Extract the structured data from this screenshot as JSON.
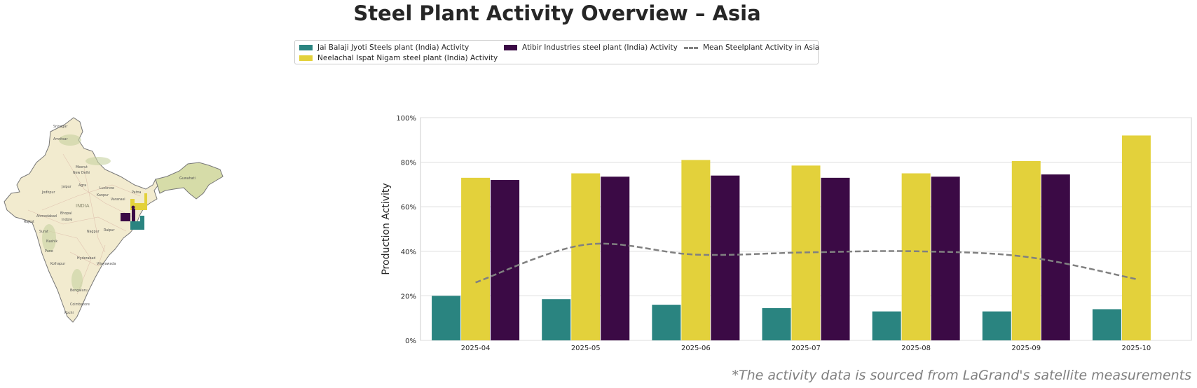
{
  "title": "Steel Plant Activity Overview – Asia",
  "legend": {
    "items": [
      {
        "label": "Jai Balaji Jyoti Steels plant (India) Activity",
        "color": "#2a8480"
      },
      {
        "label": "Neelachal Ispat Nigam steel plant (India) Activity",
        "color": "#e3d13b"
      },
      {
        "label": "Atibir Industries steel plant (India) Activity",
        "color": "#3b0a45"
      },
      {
        "label": "Mean Steelplant Activity in Asia",
        "color": "#808080"
      }
    ]
  },
  "map": {
    "country_label": "INDIA",
    "cities": [
      "Srinagar",
      "Amritsar",
      "Meerut",
      "New Delhi",
      "Jaipur",
      "Agra",
      "Lucknow",
      "Kanpur",
      "Patna",
      "Jodhpur",
      "Varanasi",
      "Ahmedabad",
      "Bhopal",
      "Indore",
      "Rajkot",
      "Surat",
      "Nagpur",
      "Nashik",
      "Raipur",
      "Pune",
      "Hyderabad",
      "Kolhapur",
      "Vijayawada",
      "Bengaluru",
      "Coimbatore",
      "Kochi",
      "Guwahati"
    ]
  },
  "chart_data": {
    "type": "bar",
    "categories": [
      "2025-04",
      "2025-05",
      "2025-06",
      "2025-07",
      "2025-08",
      "2025-09",
      "2025-10"
    ],
    "series": [
      {
        "name": "Jai Balaji Jyoti Steels plant (India) Activity",
        "color": "#2a8480",
        "values": [
          20,
          18.5,
          16,
          14.5,
          13,
          13,
          14
        ]
      },
      {
        "name": "Neelachal Ispat Nigam steel plant (India) Activity",
        "color": "#e3d13b",
        "values": [
          73,
          75,
          81,
          78.5,
          75,
          80.5,
          92
        ]
      },
      {
        "name": "Atibir Industries steel plant (India) Activity",
        "color": "#3b0a45",
        "values": [
          72,
          73.5,
          74,
          73,
          73.5,
          74.5,
          null
        ]
      }
    ],
    "line": {
      "name": "Mean Steelplant Activity in Asia",
      "color": "#808080",
      "values": [
        26,
        43,
        38.5,
        39.5,
        40,
        37.5,
        27.5
      ]
    },
    "ylabel": "Production Activity",
    "yticks": [
      "0%",
      "20%",
      "40%",
      "60%",
      "80%",
      "100%"
    ],
    "ylim": [
      0,
      100
    ],
    "grid": true,
    "legend_position": "top-center"
  },
  "footnote": "*The activity data is sourced from LaGrand's satellite measurements"
}
